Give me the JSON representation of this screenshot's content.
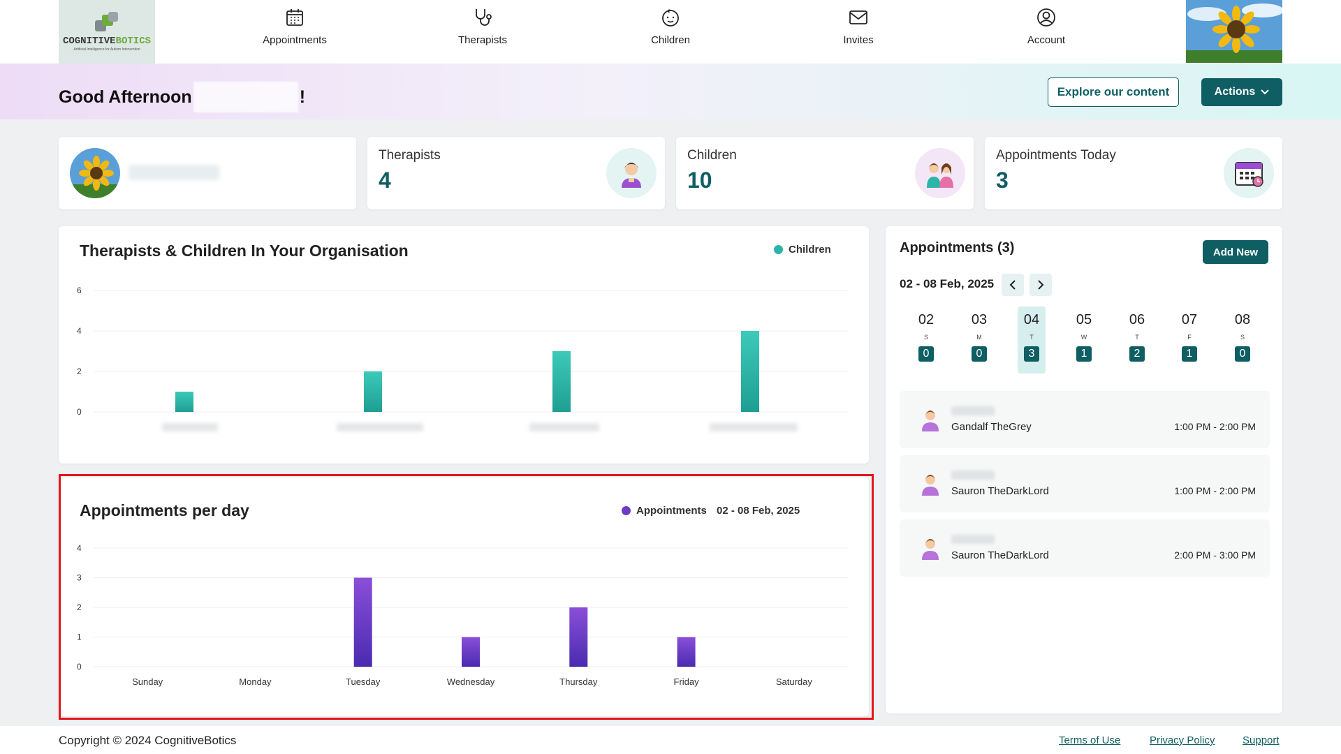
{
  "brand": {
    "name_part1": "COGNITIVE",
    "name_part2": "BOTICS",
    "tagline": "Artificial Intelligence for Autism Intervention"
  },
  "nav": {
    "items": [
      {
        "label": "Appointments",
        "icon": "calendar-icon"
      },
      {
        "label": "Therapists",
        "icon": "stethoscope-icon"
      },
      {
        "label": "Children",
        "icon": "baby-face-icon"
      },
      {
        "label": "Invites",
        "icon": "envelope-icon"
      },
      {
        "label": "Account",
        "icon": "user-circle-icon"
      }
    ],
    "avatar_icon": "sunflower-avatar"
  },
  "banner": {
    "greeting": "Good Afternoon",
    "greeting_suffix": "!",
    "explore_label": "Explore our content",
    "actions_label": "Actions"
  },
  "stats": {
    "therapists": {
      "label": "Therapists",
      "value": "4"
    },
    "children": {
      "label": "Children",
      "value": "10"
    },
    "appointments_today": {
      "label": "Appointments Today",
      "value": "3"
    }
  },
  "org_chart": {
    "title": "Therapists & Children In Your Organisation",
    "legend": "Children"
  },
  "day_chart": {
    "title": "Appointments per day",
    "legend": "Appointments",
    "range": "02 - 08 Feb, 2025"
  },
  "chart_data": [
    {
      "type": "bar",
      "title": "Therapists & Children In Your Organisation",
      "categories": [
        "",
        "",
        "",
        ""
      ],
      "series": [
        {
          "name": "Children",
          "values": [
            1,
            2,
            3,
            4
          ]
        }
      ],
      "yticks": [
        0,
        2,
        4,
        6
      ],
      "ylim": [
        0,
        6
      ],
      "grid": true,
      "legend_position": "top-right",
      "color": "#2bb5a8"
    },
    {
      "type": "bar",
      "title": "Appointments per day",
      "categories": [
        "Sunday",
        "Monday",
        "Tuesday",
        "Wednesday",
        "Thursday",
        "Friday",
        "Saturday"
      ],
      "series": [
        {
          "name": "Appointments",
          "values": [
            0,
            0,
            3,
            1,
            2,
            1,
            0
          ]
        }
      ],
      "yticks": [
        0,
        1,
        2,
        3,
        4
      ],
      "ylim": [
        0,
        4
      ],
      "grid": true,
      "legend_position": "top-right",
      "color": "#6f3bc6"
    }
  ],
  "appointments": {
    "title": "Appointments (3)",
    "add_label": "Add New",
    "range": "02 - 08 Feb, 2025",
    "days": [
      {
        "num": "02",
        "wd": "S",
        "count": "0"
      },
      {
        "num": "03",
        "wd": "M",
        "count": "0"
      },
      {
        "num": "04",
        "wd": "T",
        "count": "3"
      },
      {
        "num": "05",
        "wd": "W",
        "count": "1"
      },
      {
        "num": "06",
        "wd": "T",
        "count": "2"
      },
      {
        "num": "07",
        "wd": "F",
        "count": "1"
      },
      {
        "num": "08",
        "wd": "S",
        "count": "0"
      }
    ],
    "items": [
      {
        "therapist": "Gandalf TheGrey",
        "time": "1:00 PM - 2:00 PM"
      },
      {
        "therapist": "Sauron TheDarkLord",
        "time": "1:00 PM - 2:00 PM"
      },
      {
        "therapist": "Sauron TheDarkLord",
        "time": "2:00 PM - 3:00 PM"
      }
    ]
  },
  "footer": {
    "copyright": "Copyright © 2024 CognitiveBotics",
    "terms": "Terms of Use",
    "privacy": "Privacy Policy",
    "support": "Support"
  },
  "colors": {
    "primary": "#0f5e63",
    "teal_bar": "#2bb5a8",
    "purple_bar": "#6f3bc6",
    "highlight": "#e3161b"
  }
}
